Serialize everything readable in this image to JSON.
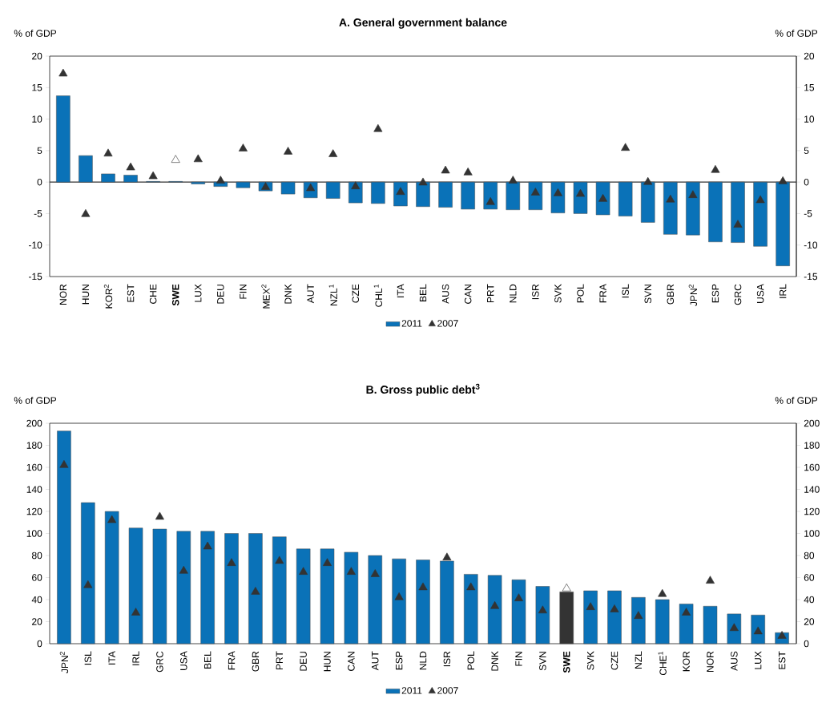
{
  "chart_data": [
    {
      "type": "bar",
      "title": "A. General government balance",
      "ylabel": "% of GDP",
      "y2label": "% of GDP",
      "legend": "bottom",
      "categories": [
        "NOR",
        "HUN",
        "KOR$^{2}$",
        "EST",
        "CHE",
        "**SWE**",
        "LUX",
        "DEU",
        "FIN",
        "MEX$^{2}$",
        "DNK",
        "AUT",
        "NZL$^{1}$",
        "CZE",
        "CHL$^{1}$",
        "ITA",
        "BEL",
        "AUS",
        "CAN",
        "PRT",
        "NLD",
        "ISR",
        "SVK",
        "POL",
        "FRA",
        "ISL",
        "SVN",
        "GBR",
        "JPN$^{2}$",
        "ESP",
        "GRC",
        "USA",
        "IRL"
      ],
      "series": [
        {
          "name": "2011",
          "color": "#0a72b8",
          "values": [
            13.7,
            4.2,
            1.3,
            1.1,
            0.1,
            0.1,
            -0.3,
            -0.7,
            -0.9,
            -1.4,
            -1.9,
            -2.5,
            -2.6,
            -3.3,
            -3.4,
            -3.8,
            -3.9,
            -4.0,
            -4.3,
            -4.3,
            -4.4,
            -4.4,
            -4.9,
            -5.0,
            -5.2,
            -5.4,
            -6.4,
            -8.3,
            -8.4,
            -9.5,
            -9.6,
            -10.2,
            -13.3
          ]
        },
        {
          "name": "2007",
          "type": "scatter",
          "marker": "triangle",
          "color": "#333333",
          "colors": [
            "#333333",
            "#333333",
            "#333333",
            "#333333",
            "#333333",
            "#ffffff",
            "#333333",
            "#333333",
            "#333333",
            "#333333",
            "#333333",
            "#333333",
            "#333333",
            "#333333",
            "#333333",
            "#333333",
            "#333333",
            "#333333",
            "#333333",
            "#333333",
            "#333333",
            "#333333",
            "#333333",
            "#333333",
            "#333333",
            "#333333",
            "#333333",
            "#333333",
            "#333333",
            "#333333",
            "#333333",
            "#333333",
            "#333333"
          ],
          "values": [
            17.2,
            -5.1,
            4.5,
            2.3,
            0.9,
            3.5,
            3.6,
            0.2,
            5.3,
            -0.8,
            4.8,
            -1.0,
            4.4,
            -0.7,
            8.4,
            -1.6,
            -0.1,
            1.8,
            1.5,
            -3.2,
            0.2,
            -1.7,
            -1.8,
            -1.9,
            -2.7,
            5.4,
            0.0,
            -2.8,
            -2.1,
            1.9,
            -6.8,
            -2.9,
            0.1
          ]
        }
      ],
      "ylim": [
        -15,
        20
      ],
      "yticks": [
        -15,
        -10,
        -5,
        0,
        5,
        10,
        15,
        20
      ],
      "y2lim": [
        -15,
        20
      ],
      "y2ticks": [
        -15,
        -10,
        -5,
        0,
        5,
        10,
        15,
        20
      ]
    },
    {
      "type": "bar",
      "title": "B. Gross public debt$^{3}$",
      "ylabel": "% of GDP",
      "y2label": "% of GDP",
      "legend": "bottom",
      "categories": [
        "JPN$^{2}$",
        "ISL",
        "ITA",
        "IRL",
        "GRC",
        "USA",
        "BEL",
        "FRA",
        "GBR",
        "PRT",
        "DEU",
        "HUN",
        "CAN",
        "AUT",
        "ESP",
        "NLD",
        "ISR",
        "POL",
        "DNK",
        "FIN",
        "SVN",
        "**SWE**",
        "SVK",
        "CZE",
        "NZL",
        "CHE$^{1}$",
        "KOR",
        "NOR",
        "AUS",
        "LUX",
        "EST"
      ],
      "series": [
        {
          "name": "2011",
          "color": "#0a72b8",
          "colors": [
            "#0a72b8",
            "#0a72b8",
            "#0a72b8",
            "#0a72b8",
            "#0a72b8",
            "#0a72b8",
            "#0a72b8",
            "#0a72b8",
            "#0a72b8",
            "#0a72b8",
            "#0a72b8",
            "#0a72b8",
            "#0a72b8",
            "#0a72b8",
            "#0a72b8",
            "#0a72b8",
            "#0a72b8",
            "#0a72b8",
            "#0a72b8",
            "#0a72b8",
            "#0a72b8",
            "#333333",
            "#0a72b8",
            "#0a72b8",
            "#0a72b8",
            "#0a72b8",
            "#0a72b8",
            "#0a72b8",
            "#0a72b8",
            "#0a72b8",
            "#0a72b8"
          ],
          "values": [
            193,
            128,
            120,
            105,
            104,
            102,
            102,
            100,
            100,
            97,
            86,
            86,
            83,
            80,
            77,
            76,
            75,
            63,
            62,
            58,
            52,
            47,
            48,
            48,
            42,
            40,
            36,
            34,
            27,
            26,
            10
          ]
        },
        {
          "name": "2007",
          "type": "scatter",
          "marker": "triangle",
          "color": "#333333",
          "colors": [
            "#333333",
            "#333333",
            "#333333",
            "#333333",
            "#333333",
            "#333333",
            "#333333",
            "#333333",
            "#333333",
            "#333333",
            "#333333",
            "#333333",
            "#333333",
            "#333333",
            "#333333",
            "#333333",
            "#333333",
            "#333333",
            "#333333",
            "#333333",
            "#333333",
            "#ffffff",
            "#333333",
            "#333333",
            "#333333",
            "#333333",
            "#333333",
            "#333333",
            "#333333",
            "#333333",
            "#333333"
          ],
          "values": [
            162,
            53,
            112,
            28,
            115,
            66,
            88,
            73,
            47,
            75,
            65,
            73,
            65,
            63,
            42,
            51,
            78,
            51,
            34,
            41,
            30,
            50,
            33,
            31,
            25,
            45,
            28,
            57,
            14,
            11,
            7
          ]
        }
      ],
      "ylim": [
        0,
        200
      ],
      "yticks": [
        0,
        20,
        40,
        60,
        80,
        100,
        120,
        140,
        160,
        180,
        200
      ],
      "y2lim": [
        0,
        200
      ],
      "y2ticks": [
        0,
        20,
        40,
        60,
        80,
        100,
        120,
        140,
        160,
        180,
        200
      ]
    }
  ]
}
